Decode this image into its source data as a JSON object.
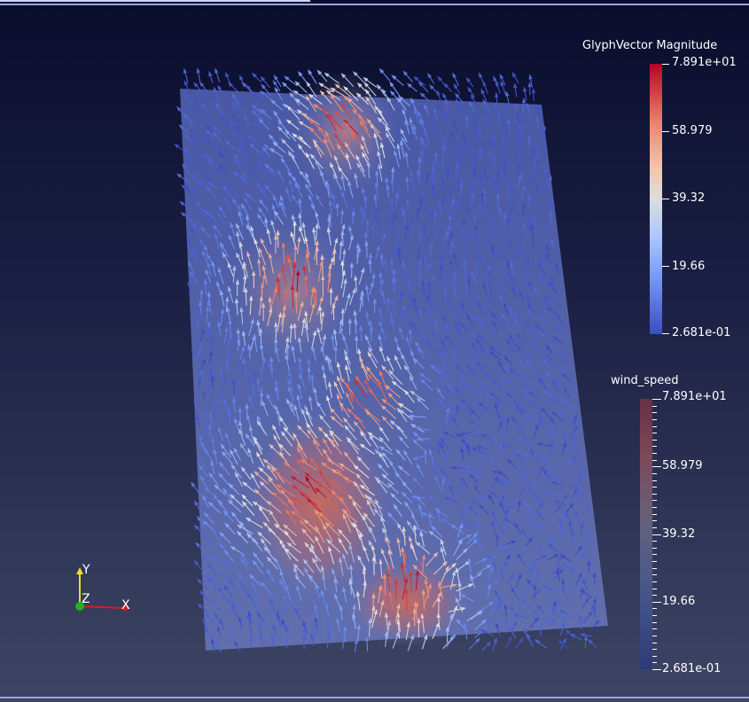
{
  "legend_glyph": {
    "title": "GlyphVector Magnitude",
    "max_label": "7.891e+01",
    "ticks": [
      "58.979",
      "39.32",
      "19.66"
    ],
    "min_label": "2.681e-01"
  },
  "legend_wind": {
    "title": "wind_speed",
    "max_label": "7.891e+01",
    "ticks": [
      "58.979",
      "39.32",
      "19.66"
    ],
    "min_label": "2.681e-01"
  },
  "axes": {
    "x_label": "X",
    "y_label": "Y",
    "z_label": "Z"
  },
  "colors": {
    "x_axis": "#d42020",
    "y_axis": "#e8e020",
    "z_axis": "#20b020",
    "colormap_low": "#3b4cc0",
    "colormap_mid": "#dddddd",
    "colormap_high": "#b40426"
  }
}
